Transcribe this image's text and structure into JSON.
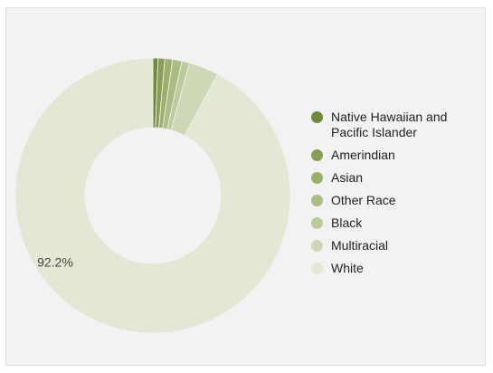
{
  "chart_data": {
    "type": "pie",
    "donut": true,
    "categories": [
      "Native Hawaiian and Pacific Islander",
      "Amerindian",
      "Asian",
      "Other Race",
      "Black",
      "Multiracial",
      "White"
    ],
    "values": [
      0.6,
      0.8,
      0.9,
      1.1,
      0.9,
      3.5,
      92.2
    ],
    "colors": [
      "#6e8a3a",
      "#8a9e55",
      "#9bb06b",
      "#abbd84",
      "#bccb9c",
      "#cdd8b6",
      "#e2e8d3"
    ],
    "data_labels": [
      {
        "category": "White",
        "text": "92.2%"
      }
    ],
    "legend_position": "right"
  }
}
